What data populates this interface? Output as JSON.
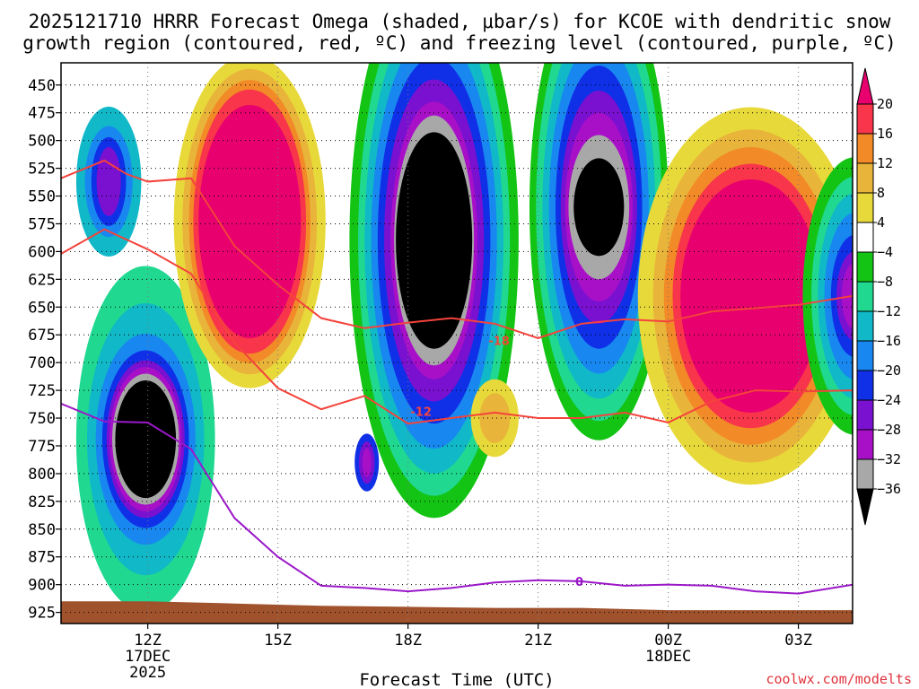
{
  "chart_data": {
    "type": "heatmap",
    "title_line1": "2025121710 HRRR Forecast Omega (shaded, μbar/s) for KCOE with dendritic snow",
    "title_line2": "growth region (contoured, red, ºC) and freezing level (contoured, purple, ºC)",
    "xlabel": "Forecast Time (UTC)",
    "credit": "coolwx.com/modelts",
    "x_range_hours": [
      10,
      28.25
    ],
    "y_levels": [
      450,
      475,
      500,
      525,
      550,
      575,
      600,
      625,
      650,
      675,
      700,
      725,
      750,
      775,
      800,
      825,
      850,
      875,
      900,
      925
    ],
    "y_range": [
      430,
      935
    ],
    "x_ticks": [
      {
        "hour": 12,
        "label": "12Z",
        "sub1": "17DEC",
        "sub2": "2025"
      },
      {
        "hour": 15,
        "label": "15Z",
        "sub1": "",
        "sub2": ""
      },
      {
        "hour": 18,
        "label": "18Z",
        "sub1": "",
        "sub2": ""
      },
      {
        "hour": 21,
        "label": "21Z",
        "sub1": "",
        "sub2": ""
      },
      {
        "hour": 24,
        "label": "00Z",
        "sub1": "18DEC",
        "sub2": ""
      },
      {
        "hour": 27,
        "label": "03Z",
        "sub1": "",
        "sub2": ""
      }
    ],
    "colorbar": {
      "labels": [
        "20",
        "16",
        "12",
        "8",
        "4",
        "−4",
        "−8",
        "−12",
        "−16",
        "−20",
        "−24",
        "−28",
        "−32",
        "−36"
      ],
      "colors": [
        "#e8006e",
        "#f8354a",
        "#f28a28",
        "#e8b43a",
        "#e8d93a",
        "#ffffff",
        "#14c414",
        "#20d890",
        "#10b8c8",
        "#1888f0",
        "#1030e8",
        "#7a10d0",
        "#a810c8",
        "#a8a8a8",
        "#000000"
      ]
    },
    "omega_blobs": [
      {
        "name": "descent-center-a",
        "cx": 11.95,
        "cy": 769,
        "levels": [
          {
            "v": -8,
            "rx": 1.6,
            "ry": 312
          },
          {
            "v": -12,
            "rx": 1.35,
            "ry": 245
          },
          {
            "v": -16,
            "rx": 1.15,
            "ry": 190
          },
          {
            "v": -20,
            "rx": 1.0,
            "ry": 160
          },
          {
            "v": -24,
            "rx": 0.9,
            "ry": 142
          },
          {
            "v": -28,
            "rx": 0.83,
            "ry": 130
          },
          {
            "v": -32,
            "rx": 0.77,
            "ry": 118
          },
          {
            "v": -36,
            "rx": 0.7,
            "ry": 106
          }
        ]
      },
      {
        "name": "descent-center-b",
        "cx": 11.1,
        "cy": 537,
        "levels": [
          {
            "v": -12,
            "rx": 0.75,
            "ry": 135
          },
          {
            "v": -16,
            "rx": 0.55,
            "ry": 100
          },
          {
            "v": -20,
            "rx": 0.4,
            "ry": 80
          },
          {
            "v": -24,
            "rx": 0.28,
            "ry": 62
          }
        ]
      },
      {
        "name": "ascent-center-a",
        "cx": 14.35,
        "cy": 573,
        "levels": [
          {
            "v": 4,
            "rx": 1.75,
            "ry": 300
          },
          {
            "v": 8,
            "rx": 1.55,
            "ry": 275
          },
          {
            "v": 12,
            "rx": 1.4,
            "ry": 255
          },
          {
            "v": 16,
            "rx": 1.3,
            "ry": 238
          },
          {
            "v": 20,
            "rx": 1.18,
            "ry": 210
          }
        ]
      },
      {
        "name": "descent-center-c",
        "cx": 18.6,
        "cy": 590,
        "levels": [
          {
            "v": -4,
            "rx": 1.95,
            "ry": 500
          },
          {
            "v": -8,
            "rx": 1.75,
            "ry": 460
          },
          {
            "v": -12,
            "rx": 1.6,
            "ry": 420
          },
          {
            "v": -16,
            "rx": 1.45,
            "ry": 375
          },
          {
            "v": -20,
            "rx": 1.3,
            "ry": 330
          },
          {
            "v": -24,
            "rx": 1.15,
            "ry": 290
          },
          {
            "v": -28,
            "rx": 1.0,
            "ry": 250
          },
          {
            "v": -32,
            "rx": 0.92,
            "ry": 225
          },
          {
            "v": -36,
            "rx": 0.88,
            "ry": 195
          }
        ]
      },
      {
        "name": "descent-center-d",
        "cx": 22.4,
        "cy": 560,
        "levels": [
          {
            "v": -4,
            "rx": 1.6,
            "ry": 420
          },
          {
            "v": -8,
            "rx": 1.45,
            "ry": 385
          },
          {
            "v": -12,
            "rx": 1.3,
            "ry": 345
          },
          {
            "v": -16,
            "rx": 1.15,
            "ry": 300
          },
          {
            "v": -20,
            "rx": 1.0,
            "ry": 255
          },
          {
            "v": -24,
            "rx": 0.88,
            "ry": 210
          },
          {
            "v": -28,
            "rx": 0.78,
            "ry": 170
          },
          {
            "v": -32,
            "rx": 0.7,
            "ry": 130
          },
          {
            "v": -36,
            "rx": 0.58,
            "ry": 88
          }
        ]
      },
      {
        "name": "descent-center-e",
        "cx": 17.05,
        "cy": 790,
        "levels": [
          {
            "v": -20,
            "rx": 0.28,
            "ry": 52
          },
          {
            "v": -24,
            "rx": 0.18,
            "ry": 38
          },
          {
            "v": -28,
            "rx": 0.1,
            "ry": 26
          }
        ]
      },
      {
        "name": "ascent-center-b",
        "cx": 20.0,
        "cy": 750,
        "levels": [
          {
            "v": 4,
            "rx": 0.55,
            "ry": 70
          },
          {
            "v": 8,
            "rx": 0.35,
            "ry": 45
          }
        ]
      },
      {
        "name": "ascent-center-c",
        "cx": 25.9,
        "cy": 640,
        "levels": [
          {
            "v": 4,
            "rx": 2.6,
            "ry": 340
          },
          {
            "v": 8,
            "rx": 2.25,
            "ry": 300
          },
          {
            "v": 12,
            "rx": 2.0,
            "ry": 268
          },
          {
            "v": 16,
            "rx": 1.8,
            "ry": 238
          },
          {
            "v": 20,
            "rx": 1.62,
            "ry": 210
          }
        ]
      },
      {
        "name": "descent-center-f",
        "cx": 28.3,
        "cy": 640,
        "levels": [
          {
            "v": -4,
            "rx": 1.2,
            "ry": 250
          },
          {
            "v": -8,
            "rx": 1.0,
            "ry": 215
          },
          {
            "v": -12,
            "rx": 0.85,
            "ry": 185
          },
          {
            "v": -16,
            "rx": 0.7,
            "ry": 150
          },
          {
            "v": -20,
            "rx": 0.55,
            "ry": 110
          },
          {
            "v": -24,
            "rx": 0.42,
            "ry": 80
          },
          {
            "v": -28,
            "rx": 0.3,
            "ry": 60
          }
        ]
      }
    ],
    "dgz_contours": [
      {
        "label": "-18",
        "label_at": [
          20.1,
          680
        ],
        "points": [
          [
            10,
            534
          ],
          [
            11,
            518
          ],
          [
            11.5,
            530
          ],
          [
            12,
            537
          ],
          [
            13,
            534
          ],
          [
            14,
            595
          ],
          [
            15,
            630
          ],
          [
            16,
            660
          ],
          [
            17,
            669
          ],
          [
            18,
            664
          ],
          [
            19,
            660
          ],
          [
            20,
            665
          ],
          [
            21,
            678
          ],
          [
            22,
            665
          ],
          [
            23,
            661
          ],
          [
            24,
            663
          ],
          [
            25,
            654
          ],
          [
            26,
            651
          ],
          [
            27,
            648
          ],
          [
            28.25,
            640
          ]
        ]
      },
      {
        "label": "-12",
        "label_at": [
          18.3,
          744
        ],
        "points": [
          [
            10,
            602
          ],
          [
            11,
            580
          ],
          [
            12,
            598
          ],
          [
            13,
            620
          ],
          [
            14,
            682
          ],
          [
            15,
            723
          ],
          [
            16,
            742
          ],
          [
            17,
            730
          ],
          [
            18,
            755
          ],
          [
            19,
            750
          ],
          [
            20,
            745
          ],
          [
            21,
            750
          ],
          [
            22,
            750
          ],
          [
            23,
            745
          ],
          [
            24,
            754
          ],
          [
            25,
            735
          ],
          [
            26,
            725
          ],
          [
            27,
            726
          ],
          [
            28.25,
            725
          ]
        ]
      }
    ],
    "freezing_level": {
      "label": "0",
      "label_at": [
        21.95,
        897
      ],
      "points": [
        [
          10,
          737
        ],
        [
          11,
          753
        ],
        [
          12,
          754
        ],
        [
          13,
          778
        ],
        [
          14,
          840
        ],
        [
          15,
          875
        ],
        [
          16,
          901
        ],
        [
          17,
          903
        ],
        [
          18,
          906
        ],
        [
          19,
          903
        ],
        [
          20,
          898
        ],
        [
          21,
          896
        ],
        [
          22,
          897
        ],
        [
          23,
          901
        ],
        [
          24,
          900
        ],
        [
          25,
          901
        ],
        [
          26,
          906
        ],
        [
          27,
          908
        ],
        [
          28.25,
          900
        ]
      ]
    },
    "terrain_pressure": [
      [
        10,
        915
      ],
      [
        12,
        915
      ],
      [
        14,
        917
      ],
      [
        16,
        919
      ],
      [
        18,
        920
      ],
      [
        20,
        921
      ],
      [
        22,
        921
      ],
      [
        24,
        923
      ],
      [
        26,
        923
      ],
      [
        28.25,
        923
      ]
    ]
  }
}
